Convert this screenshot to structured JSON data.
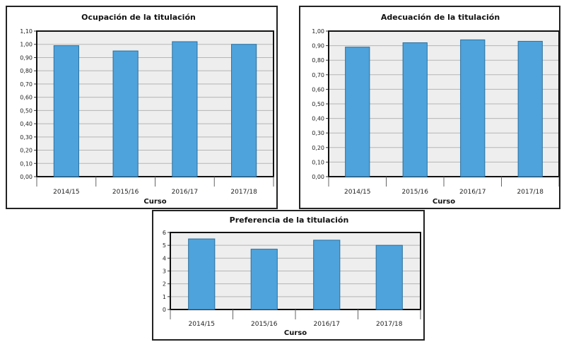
{
  "chart_data": [
    {
      "type": "bar",
      "title": "Ocupación de la titulación",
      "xlabel": "Curso",
      "ylabel": "",
      "categories": [
        "2014/15",
        "2015/16",
        "2016/17",
        "2017/18"
      ],
      "values": [
        0.99,
        0.95,
        1.02,
        1.0
      ],
      "ylim": [
        0,
        1.1
      ],
      "yticks": [
        "0,00",
        "0,10",
        "0,20",
        "0,30",
        "0,40",
        "0,50",
        "0,60",
        "0,70",
        "0,80",
        "0,90",
        "1,00",
        "1,10"
      ],
      "grid": true,
      "bar_color": "#4fa3dc",
      "plot_background": "#eeeeee"
    },
    {
      "type": "bar",
      "title": "Adecuación de la titulación",
      "xlabel": "Curso",
      "ylabel": "",
      "categories": [
        "2014/15",
        "2015/16",
        "2016/17",
        "2017/18"
      ],
      "values": [
        0.89,
        0.92,
        0.94,
        0.93
      ],
      "ylim": [
        0,
        1.0
      ],
      "yticks": [
        "0,00",
        "0,10",
        "0,20",
        "0,30",
        "0,40",
        "0,50",
        "0,60",
        "0,70",
        "0,80",
        "0,90",
        "1,00"
      ],
      "grid": true,
      "bar_color": "#4fa3dc",
      "plot_background": "#eeeeee"
    },
    {
      "type": "bar",
      "title": "Preferencia de la titulación",
      "xlabel": "Curso",
      "ylabel": "",
      "categories": [
        "2014/15",
        "2015/16",
        "2016/17",
        "2017/18"
      ],
      "values": [
        5.5,
        4.7,
        5.4,
        5.0
      ],
      "ylim": [
        0,
        6
      ],
      "yticks": [
        "0",
        "1",
        "2",
        "3",
        "4",
        "5",
        "6"
      ],
      "grid": true,
      "bar_color": "#4fa3dc",
      "plot_background": "#eeeeee"
    }
  ]
}
